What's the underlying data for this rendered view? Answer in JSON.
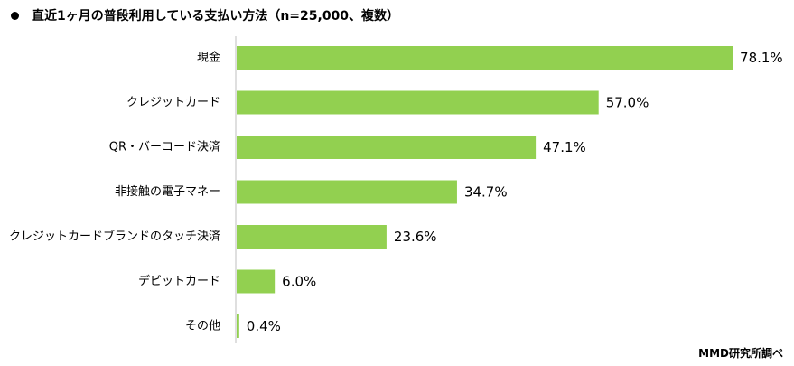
{
  "chart_data": {
    "type": "bar",
    "orientation": "horizontal",
    "title": "直近1ヶ月の普段利用している支払い方法（n=25,000、複数）",
    "categories": [
      "現金",
      "クレジットカード",
      "QR・バーコード決済",
      "非接触の電子マネー",
      "クレジットカードブランドのタッチ決済",
      "デビットカード",
      "その他"
    ],
    "values": [
      78.1,
      57.0,
      47.1,
      34.7,
      23.6,
      6.0,
      0.4
    ],
    "value_labels": [
      "78.1%",
      "57.0%",
      "47.1%",
      "34.7%",
      "23.6%",
      "6.0%",
      "0.4%"
    ],
    "unit": "%",
    "xlim": [
      0,
      100
    ],
    "grid": false,
    "legend": "none",
    "bar_color": "#92d050",
    "axis_color": "#bfbfbf"
  },
  "source": "MMD研究所調べ"
}
